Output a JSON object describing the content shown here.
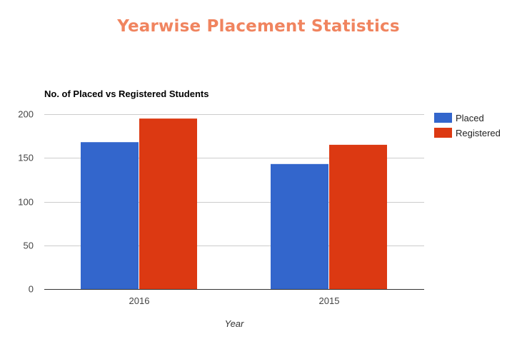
{
  "page": {
    "title": "Yearwise Placement Statistics"
  },
  "chart_data": {
    "type": "bar",
    "title": "No. of Placed vs Registered Students",
    "xlabel": "Year",
    "ylabel": "",
    "categories": [
      "2016",
      "2015"
    ],
    "series": [
      {
        "name": "Placed",
        "values": [
          168,
          143
        ],
        "color": "#3366cc"
      },
      {
        "name": "Registered",
        "values": [
          195,
          165
        ],
        "color": "#dc3912"
      }
    ],
    "ylim": [
      0,
      200
    ],
    "yticks": [
      0,
      50,
      100,
      150,
      200
    ],
    "grid": true,
    "legend_position": "right"
  },
  "colors": {
    "page_title": "#f0845f",
    "gridline": "#cccccc",
    "axis": "#333333"
  }
}
